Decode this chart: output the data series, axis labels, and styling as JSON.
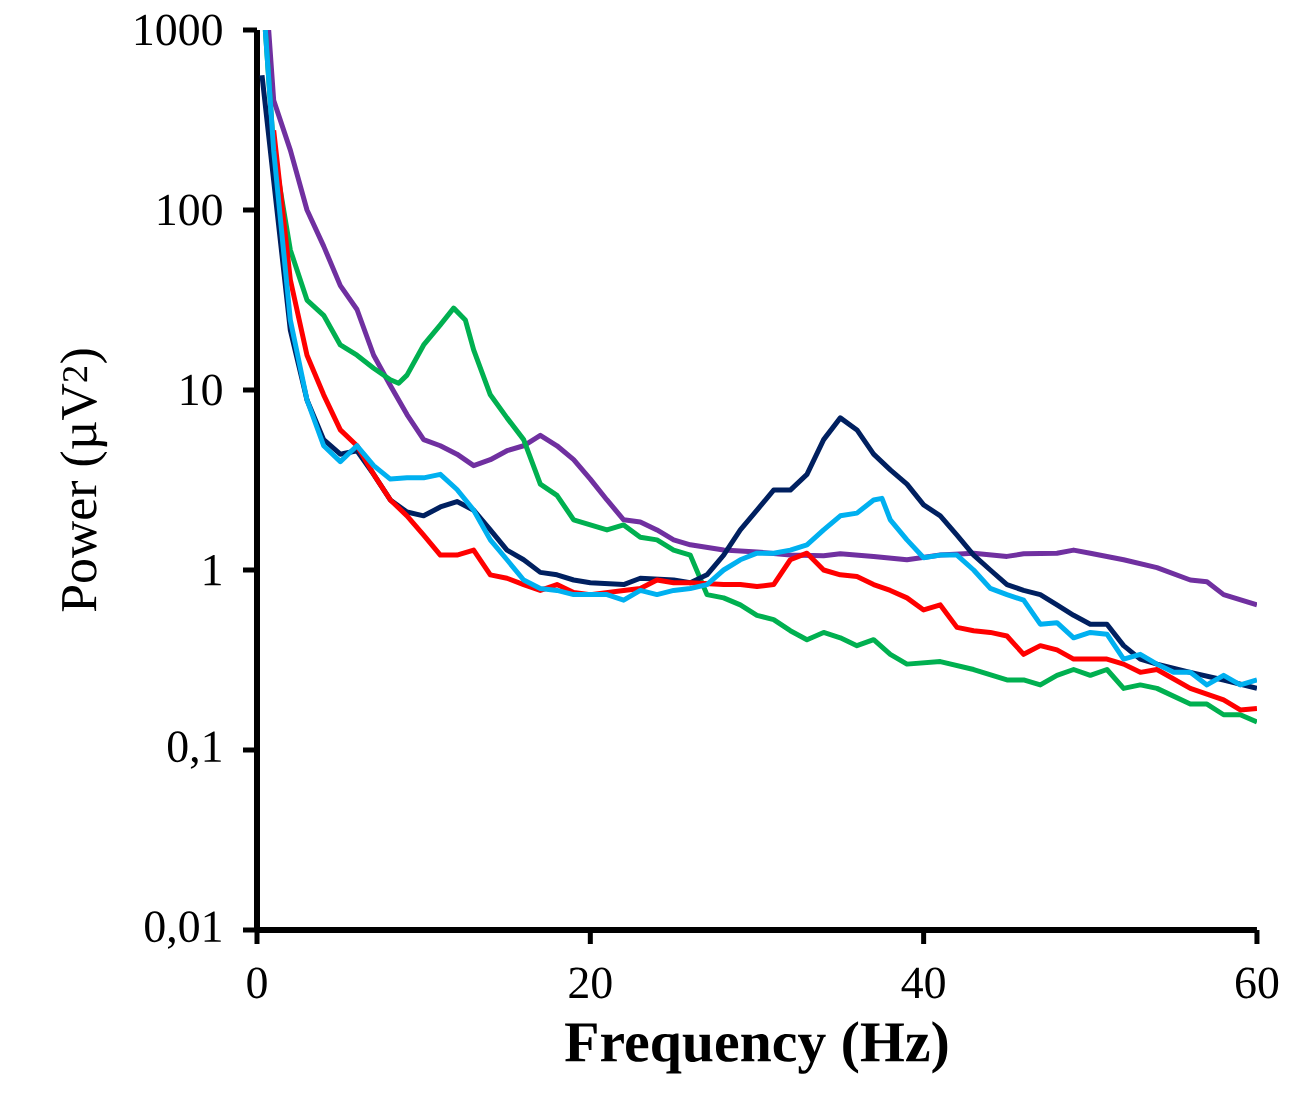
{
  "chart_data": {
    "type": "line",
    "xlabel": "Frequency (Hz)",
    "ylabel": "Power (µV$^{2}$)",
    "log": "y",
    "grid": false,
    "legend": false,
    "marker": "none",
    "line_style": "solid",
    "xlim": [
      0,
      60
    ],
    "xticks": [
      0,
      20,
      40,
      60
    ],
    "ylim": [
      0.01,
      1000
    ],
    "yticks": [
      {
        "value": 0.01,
        "label": "0,01"
      },
      {
        "value": 0.1,
        "label": "0,1"
      },
      1,
      10,
      100,
      1000
    ],
    "series": [
      {
        "color": "#7030a0",
        "x": [
          0.7,
          1,
          2,
          3,
          4,
          5,
          6,
          7,
          8,
          9,
          10,
          11,
          12,
          13,
          14,
          15,
          16,
          17,
          18,
          19,
          20,
          21,
          22,
          23,
          24,
          25,
          26,
          28,
          30,
          32,
          34,
          35,
          37,
          39,
          41,
          43,
          45,
          46,
          48,
          49,
          50,
          52,
          54,
          56,
          57,
          58,
          60
        ],
        "values": [
          1000,
          407,
          215,
          100,
          63,
          38,
          28,
          15.6,
          10.6,
          7.3,
          5.3,
          4.9,
          4.4,
          3.8,
          4.1,
          4.6,
          4.9,
          5.6,
          4.9,
          4.1,
          3.2,
          2.45,
          1.9,
          1.85,
          1.67,
          1.47,
          1.38,
          1.29,
          1.26,
          1.21,
          1.2,
          1.23,
          1.19,
          1.14,
          1.21,
          1.24,
          1.19,
          1.23,
          1.24,
          1.29,
          1.24,
          1.14,
          1.03,
          0.88,
          0.86,
          0.73,
          0.64
        ]
      },
      {
        "color": "#00b050",
        "x": [
          0.5,
          1,
          2,
          3,
          4,
          5,
          6,
          7,
          8,
          8.5,
          9,
          10,
          11,
          11.8,
          12.5,
          13,
          14,
          15,
          16,
          17,
          18,
          19,
          20,
          21,
          22,
          23,
          24,
          25,
          26,
          27,
          28,
          29,
          30,
          31,
          32,
          33,
          34,
          35,
          36,
          37,
          38,
          39,
          41,
          43,
          45,
          46,
          47,
          48,
          49,
          50,
          51,
          52,
          53,
          54,
          56,
          57,
          58,
          59,
          60
        ],
        "values": [
          1000,
          215,
          60,
          31.6,
          26,
          17.8,
          15.6,
          13.2,
          11.4,
          10.9,
          12.1,
          17.8,
          23,
          28.5,
          24.5,
          16.7,
          9.4,
          7,
          5.3,
          3.0,
          2.6,
          1.9,
          1.78,
          1.67,
          1.78,
          1.52,
          1.47,
          1.29,
          1.21,
          0.73,
          0.7,
          0.64,
          0.56,
          0.53,
          0.46,
          0.41,
          0.45,
          0.42,
          0.38,
          0.41,
          0.34,
          0.3,
          0.31,
          0.28,
          0.245,
          0.245,
          0.23,
          0.26,
          0.28,
          0.26,
          0.28,
          0.22,
          0.23,
          0.22,
          0.18,
          0.18,
          0.157,
          0.157,
          0.143
        ]
      },
      {
        "color": "#002060",
        "x": [
          0.3,
          1,
          2,
          3,
          4,
          5,
          6,
          7,
          8,
          9,
          10,
          11,
          12,
          13,
          14,
          15,
          16,
          17,
          18,
          19,
          20,
          22,
          23,
          25,
          26,
          27,
          28,
          29,
          30,
          31,
          32,
          33,
          34,
          35,
          36,
          37,
          38,
          39,
          40,
          41,
          42,
          43,
          44,
          45,
          46,
          47,
          48,
          49,
          50,
          51,
          52,
          53,
          54,
          56,
          58,
          60
        ],
        "values": [
          560,
          146,
          21.5,
          8.8,
          5.3,
          4.4,
          4.6,
          3.4,
          2.45,
          2.1,
          2.0,
          2.24,
          2.4,
          2.15,
          1.67,
          1.29,
          1.14,
          0.97,
          0.94,
          0.88,
          0.85,
          0.83,
          0.9,
          0.88,
          0.85,
          0.94,
          1.21,
          1.67,
          2.15,
          2.78,
          2.78,
          3.4,
          5.3,
          7.0,
          6.0,
          4.4,
          3.6,
          3.0,
          2.3,
          2.0,
          1.56,
          1.21,
          1.0,
          0.83,
          0.77,
          0.73,
          0.64,
          0.56,
          0.5,
          0.5,
          0.38,
          0.32,
          0.3,
          0.27,
          0.245,
          0.22
        ]
      },
      {
        "color": "#ff0000",
        "x": [
          1,
          2,
          3,
          4,
          5,
          6,
          7,
          8,
          9,
          10,
          11,
          12,
          13,
          14,
          15,
          16,
          17,
          18,
          19,
          20,
          22,
          23,
          24,
          25,
          26,
          28,
          29,
          30,
          31,
          32,
          33,
          34,
          35,
          36,
          37,
          38,
          39,
          40,
          41,
          42,
          43,
          44,
          45,
          46,
          47,
          48,
          49,
          50,
          51,
          52,
          53,
          54,
          56,
          58,
          59,
          60
        ],
        "values": [
          277,
          41,
          15.6,
          9.4,
          6,
          4.9,
          3.4,
          2.45,
          2.0,
          1.56,
          1.21,
          1.21,
          1.29,
          0.94,
          0.9,
          0.83,
          0.77,
          0.83,
          0.75,
          0.73,
          0.77,
          0.79,
          0.88,
          0.85,
          0.85,
          0.83,
          0.83,
          0.81,
          0.83,
          1.14,
          1.24,
          1.0,
          0.94,
          0.92,
          0.83,
          0.77,
          0.7,
          0.6,
          0.64,
          0.48,
          0.46,
          0.45,
          0.43,
          0.34,
          0.38,
          0.36,
          0.32,
          0.32,
          0.32,
          0.3,
          0.27,
          0.28,
          0.22,
          0.19,
          0.167,
          0.17
        ]
      },
      {
        "color": "#00b0f0",
        "x": [
          0.5,
          1,
          2,
          3,
          4,
          5,
          6,
          7,
          8,
          9,
          10,
          11,
          12,
          13,
          14,
          15,
          16,
          17,
          18,
          19,
          20,
          21,
          22,
          23,
          24,
          25,
          26,
          27,
          28,
          29,
          30,
          31,
          32,
          33,
          34,
          35,
          36,
          37,
          37.5,
          38,
          39,
          40,
          41,
          42,
          43,
          44,
          45,
          46,
          47,
          48,
          49,
          50,
          51,
          52,
          53,
          54,
          55,
          56,
          57,
          58,
          59,
          60
        ],
        "values": [
          1000,
          215,
          24.5,
          8.8,
          4.9,
          4.0,
          4.9,
          3.8,
          3.2,
          3.25,
          3.25,
          3.4,
          2.8,
          2.15,
          1.47,
          1.14,
          0.88,
          0.79,
          0.77,
          0.73,
          0.73,
          0.73,
          0.68,
          0.77,
          0.73,
          0.77,
          0.79,
          0.83,
          1.0,
          1.14,
          1.24,
          1.24,
          1.29,
          1.38,
          1.67,
          2.0,
          2.07,
          2.45,
          2.5,
          1.9,
          1.47,
          1.17,
          1.21,
          1.21,
          1.0,
          0.79,
          0.73,
          0.68,
          0.5,
          0.51,
          0.42,
          0.45,
          0.44,
          0.32,
          0.34,
          0.3,
          0.27,
          0.27,
          0.23,
          0.26,
          0.23,
          0.245
        ]
      }
    ]
  }
}
